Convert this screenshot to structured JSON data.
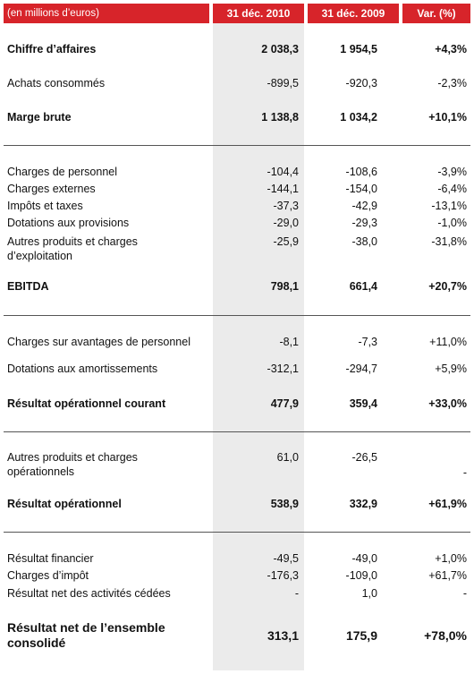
{
  "header": {
    "caption": "(en millions d’euros)",
    "col_2010": "31 déc. 2010",
    "col_2009": "31 déc. 2009",
    "col_var": "Var. (%)"
  },
  "rows": [
    {
      "label": "Chiffre d’affaires",
      "v2010": "2 038,3",
      "v2009": "1 954,5",
      "var": "+4,3%"
    },
    {
      "label": "Achats consommés",
      "v2010": "-899,5",
      "v2009": "-920,3",
      "var": "-2,3%"
    },
    {
      "label": "Marge brute",
      "v2010": "1 138,8",
      "v2009": "1 034,2",
      "var": "+10,1%"
    },
    {
      "label": "Charges de personnel",
      "v2010": "-104,4",
      "v2009": "-108,6",
      "var": "-3,9%"
    },
    {
      "label": "Charges externes",
      "v2010": "-144,1",
      "v2009": "-154,0",
      "var": "-6,4%"
    },
    {
      "label": "Impôts et taxes",
      "v2010": "-37,3",
      "v2009": "-42,9",
      "var": "-13,1%"
    },
    {
      "label": "Dotations aux provisions",
      "v2010": "-29,0",
      "v2009": "-29,3",
      "var": "-1,0%"
    },
    {
      "label": "Autres produits et charges d’exploitation",
      "v2010": "-25,9",
      "v2009": "-38,0",
      "var": "-31,8%"
    },
    {
      "label": "EBITDA",
      "v2010": "798,1",
      "v2009": "661,4",
      "var": "+20,7%"
    },
    {
      "label": "Charges sur avantages de personnel",
      "v2010": "-8,1",
      "v2009": "-7,3",
      "var": "+11,0%"
    },
    {
      "label": "Dotations aux amortissements",
      "v2010": "-312,1",
      "v2009": "-294,7",
      "var": "+5,9%"
    },
    {
      "label": "Résultat opérationnel courant",
      "v2010": "477,9",
      "v2009": "359,4",
      "var": "+33,0%"
    },
    {
      "label": "Autres produits et charges opérationnels",
      "v2010": "61,0",
      "v2009": "-26,5",
      "var": "-"
    },
    {
      "label": "Résultat opérationnel",
      "v2010": "538,9",
      "v2009": "332,9",
      "var": "+61,9%"
    },
    {
      "label": "Résultat financier",
      "v2010": "-49,5",
      "v2009": "-49,0",
      "var": "+1,0%"
    },
    {
      "label": "Charges d’impôt",
      "v2010": "-176,3",
      "v2009": "-109,0",
      "var": "+61,7%"
    },
    {
      "label": "Résultat net des activités cédées",
      "v2010": "-",
      "v2009": "1,0",
      "var": "-"
    },
    {
      "label": "Résultat net de l’ensemble consolidé",
      "v2010": "313,1",
      "v2009": "175,9",
      "var": "+78,0%"
    }
  ]
}
